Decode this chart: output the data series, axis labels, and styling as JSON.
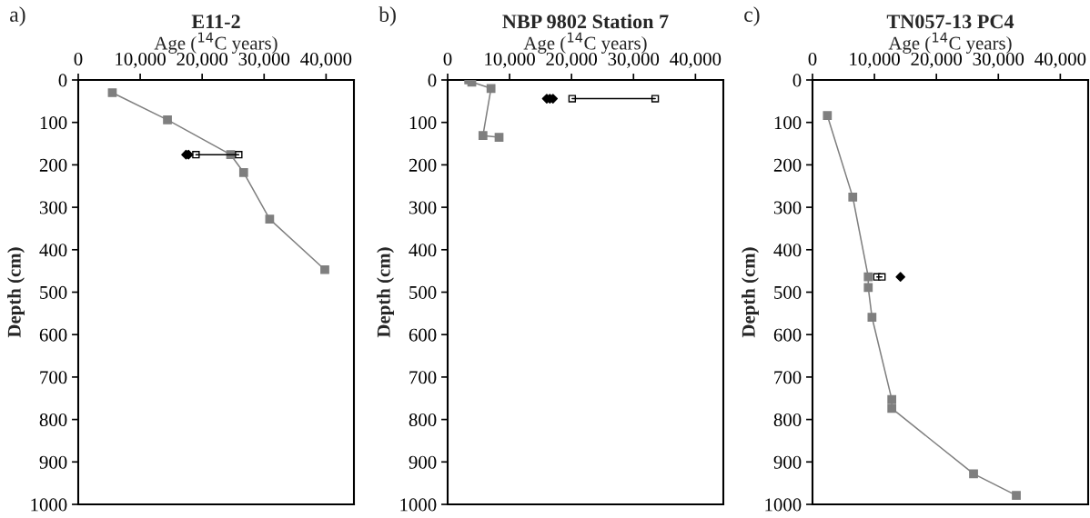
{
  "chart_data": [
    {
      "type": "line",
      "title": "E11-2",
      "xlabel": "Age ($^{14}$C years)",
      "ylabel": "Depth (cm)",
      "annotations": [
        "a)"
      ],
      "xlim": [
        0,
        44500
      ],
      "xticks": [
        0,
        {
          "value": 10000,
          "label": "10,000"
        },
        {
          "value": 20000,
          "label": "20,000"
        },
        {
          "value": 30000,
          "label": "30,000"
        },
        {
          "value": 40000,
          "label": "40,000"
        }
      ],
      "ylim": [
        1000,
        0
      ],
      "yticks": [
        0,
        100,
        200,
        300,
        400,
        500,
        600,
        700,
        800,
        900,
        1000
      ],
      "grid": false,
      "legend": false,
      "series": [
        {
          "marker": "square",
          "color": "#7f7f7f",
          "x": [
            5500,
            14400,
            24600,
            26700,
            30900,
            39800
          ],
          "values": [
            30,
            94,
            176,
            218,
            328,
            447
          ]
        },
        {
          "type": "line",
          "marker": "square",
          "color": "#000000",
          "x": [
            19000,
            25900
          ],
          "values": [
            176,
            176
          ]
        },
        {
          "type": "scatter",
          "marker": "diamond",
          "color": "#000000",
          "x": [
            17400,
            17800
          ],
          "values": [
            176,
            176
          ]
        }
      ]
    },
    {
      "type": "line",
      "title": "NBP 9802 Station 7",
      "xlabel": "Age ($^{14}$C years)",
      "ylabel": "Depth (cm)",
      "annotations": [
        "b)"
      ],
      "xlim": [
        0,
        44500
      ],
      "xticks": [
        0,
        {
          "value": 10000,
          "label": "10,000"
        },
        {
          "value": 20000,
          "label": "20,000"
        },
        {
          "value": 30000,
          "label": "30,000"
        },
        {
          "value": 40000,
          "label": "40,000"
        }
      ],
      "ylim": [
        1000,
        0
      ],
      "yticks": [
        0,
        100,
        200,
        300,
        400,
        500,
        600,
        700,
        800,
        900,
        1000
      ],
      "grid": false,
      "legend": false,
      "series": [
        {
          "marker": "square",
          "color": "#7f7f7f",
          "x": [
            3400,
            3900,
            7000,
            5700,
            8300
          ],
          "values": [
            0,
            5,
            20,
            131,
            135
          ]
        },
        {
          "type": "line",
          "marker": "square",
          "color": "#000000",
          "x": [
            20100,
            33500
          ],
          "values": [
            44,
            44
          ]
        },
        {
          "type": "scatter",
          "marker": "diamond",
          "color": "#000000",
          "x": [
            16000,
            16500,
            17000
          ],
          "values": [
            44,
            44,
            44
          ]
        }
      ]
    },
    {
      "type": "line",
      "title": "TN057-13 PC4",
      "xlabel": "Age ($^{14}$C years)",
      "ylabel": "Depth (cm)",
      "annotations": [
        "c)"
      ],
      "xlim": [
        0,
        44500
      ],
      "xticks": [
        0,
        {
          "value": 10000,
          "label": "10,000"
        },
        {
          "value": 20000,
          "label": "20,000"
        },
        {
          "value": 30000,
          "label": "30,000"
        },
        {
          "value": 40000,
          "label": "40,000"
        }
      ],
      "ylim": [
        1000,
        0
      ],
      "yticks": [
        0,
        100,
        200,
        300,
        400,
        500,
        600,
        700,
        800,
        900,
        1000
      ],
      "grid": false,
      "legend": false,
      "series": [
        {
          "marker": "square",
          "color": "#7f7f7f",
          "x": [
            2400,
            6500,
            9000,
            9000,
            9600,
            12800,
            12800,
            26000,
            32900
          ],
          "values": [
            84,
            276,
            464,
            489,
            559,
            753,
            774,
            928,
            979
          ]
        },
        {
          "type": "line",
          "marker": "square",
          "color": "#000000",
          "x": [
            10400,
            11200
          ],
          "values": [
            464,
            464
          ]
        },
        {
          "type": "scatter",
          "marker": "diamond",
          "color": "#000000",
          "x": [
            14200
          ],
          "values": [
            464
          ]
        }
      ]
    }
  ]
}
